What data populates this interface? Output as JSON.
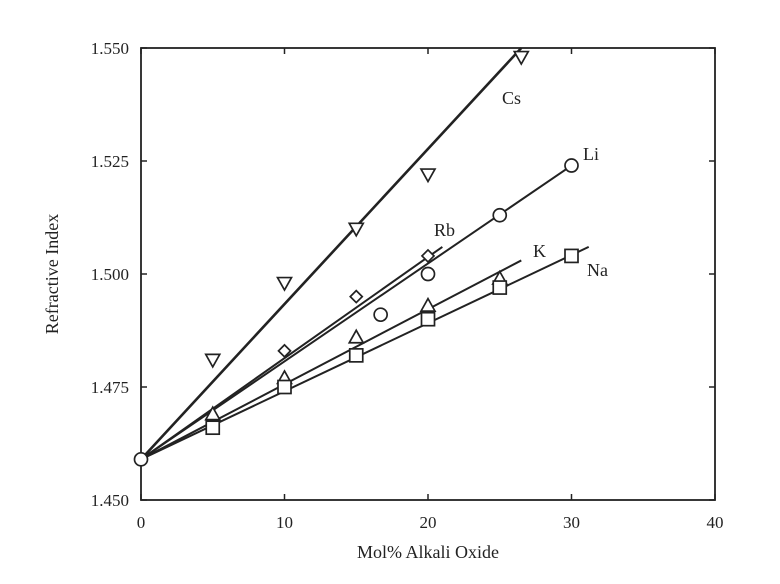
{
  "chart_data": {
    "type": "scatter",
    "title": "",
    "xlabel": "Mol% Alkali Oxide",
    "ylabel": "Refractive Index",
    "xlim": [
      0,
      40
    ],
    "ylim": [
      1.45,
      1.55
    ],
    "x_ticks": [
      "0",
      "10",
      "20",
      "30",
      "40"
    ],
    "y_ticks": [
      "1.450",
      "1.475",
      "1.500",
      "1.525",
      "1.550"
    ],
    "grid": false,
    "legend": "none (direct labels on lines)",
    "origin_point": {
      "x": 0,
      "y": 1.459,
      "marker": "circle"
    },
    "series": [
      {
        "name": "Cs",
        "marker": "triangle-down",
        "points": [
          {
            "x": 5,
            "y": 1.481
          },
          {
            "x": 10,
            "y": 1.498
          },
          {
            "x": 15,
            "y": 1.51
          },
          {
            "x": 20,
            "y": 1.522
          },
          {
            "x": 26.5,
            "y": 1.548
          }
        ],
        "fit_line": [
          [
            0,
            1.459
          ],
          [
            26.5,
            1.55
          ]
        ]
      },
      {
        "name": "Li",
        "marker": "circle",
        "points": [
          {
            "x": 16.7,
            "y": 1.491
          },
          {
            "x": 20,
            "y": 1.5
          },
          {
            "x": 25,
            "y": 1.513
          },
          {
            "x": 30,
            "y": 1.524
          }
        ],
        "fit_line": [
          [
            0,
            1.459
          ],
          [
            30,
            1.524
          ]
        ]
      },
      {
        "name": "Rb",
        "marker": "diamond",
        "points": [
          {
            "x": 10,
            "y": 1.483
          },
          {
            "x": 15,
            "y": 1.495
          },
          {
            "x": 20,
            "y": 1.504
          }
        ],
        "fit_line": [
          [
            0,
            1.459
          ],
          [
            21,
            1.506
          ]
        ]
      },
      {
        "name": "K",
        "marker": "triangle-up",
        "points": [
          {
            "x": 5,
            "y": 1.469
          },
          {
            "x": 10,
            "y": 1.477
          },
          {
            "x": 15,
            "y": 1.486
          },
          {
            "x": 20,
            "y": 1.493
          },
          {
            "x": 25,
            "y": 1.499
          }
        ],
        "fit_line": [
          [
            0,
            1.459
          ],
          [
            26.5,
            1.503
          ]
        ]
      },
      {
        "name": "Na",
        "marker": "square",
        "points": [
          {
            "x": 5,
            "y": 1.466
          },
          {
            "x": 10,
            "y": 1.475
          },
          {
            "x": 15,
            "y": 1.482
          },
          {
            "x": 20,
            "y": 1.49
          },
          {
            "x": 25,
            "y": 1.497
          },
          {
            "x": 30,
            "y": 1.504
          }
        ],
        "fit_line": [
          [
            0,
            1.459
          ],
          [
            31.2,
            1.506
          ]
        ]
      }
    ]
  }
}
